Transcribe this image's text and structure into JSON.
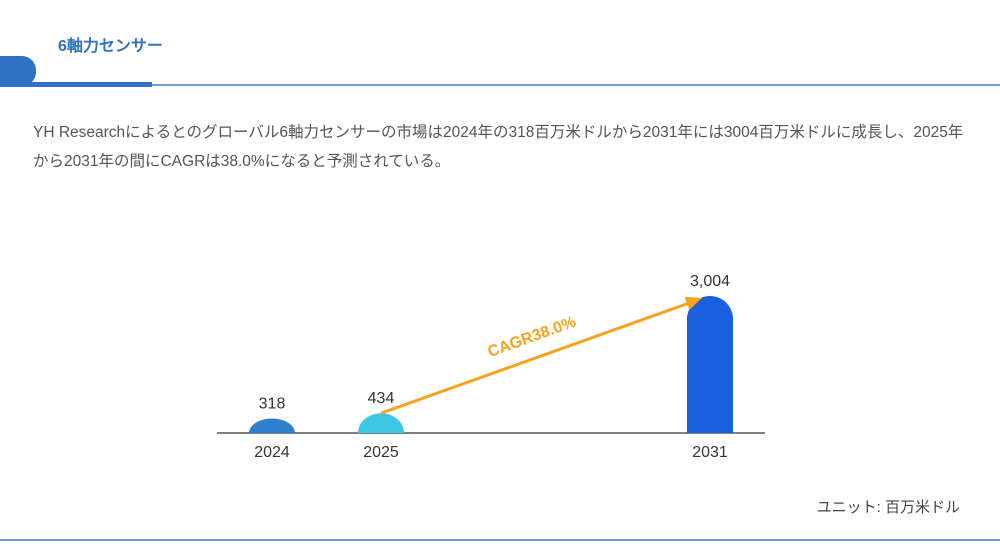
{
  "header": {
    "title": "6軸力センサー"
  },
  "description": "YH Researchによるとのグローバル6軸力センサーの市場は2024年の318百万米ドルから2031年には3004百万米ドルに成長し、2025年から2031年の間にCAGRは38.0%になると予測されている。",
  "unit_label": "ユニット: 百万米ドル",
  "chart_data": {
    "type": "bar",
    "categories": [
      "2024",
      "2025",
      "2031"
    ],
    "values": [
      318,
      434,
      3004
    ],
    "value_labels": [
      "318",
      "434",
      "3,004"
    ],
    "colors": [
      "#2f7fd0",
      "#3ec6e6",
      "#1a5fe0"
    ],
    "annotation": {
      "text": "CAGR38.0%",
      "from": "2025",
      "to": "2031",
      "color": "#f7a21b"
    },
    "ylim": [
      0,
      3004
    ],
    "grid": false,
    "ylabel": "",
    "xlabel": ""
  }
}
